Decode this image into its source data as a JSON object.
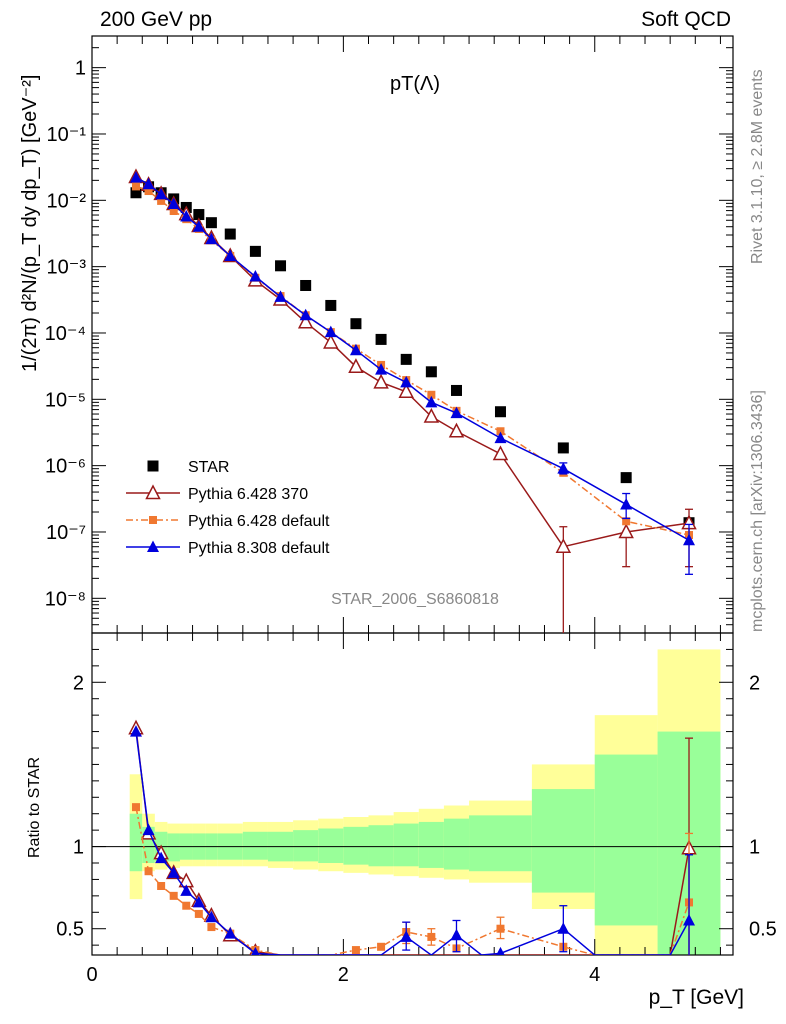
{
  "header": {
    "left": "200 GeV pp",
    "right": "Soft QCD"
  },
  "side_labels": {
    "rivet": "Rivet 3.1.10, ≥ 2.8M events",
    "mcplots": "mcplots.cern.ch [arXiv:1306.3436]"
  },
  "watermark": "STAR_2006_S6860818",
  "chart_data": [
    {
      "type": "scatter",
      "title": "pT(Λ)",
      "ylabel": "1/(2π) d²N/(p_T dy dp_T) [GeV⁻²]",
      "xlim": [
        0,
        5.1
      ],
      "ylim": [
        3e-09,
        3
      ],
      "yscale": "log",
      "x_ticklabels": [],
      "y_ticklabels": [
        "10⁻⁸",
        "10⁻⁷",
        "10⁻⁶",
        "10⁻⁵",
        "10⁻⁴",
        "10⁻³",
        "10⁻²",
        "10⁻¹",
        "1"
      ],
      "legend_position": "lower-left",
      "series": [
        {
          "name": "STAR",
          "color": "#000000",
          "marker": "square",
          "points": [
            [
              0.35,
              0.013
            ],
            [
              0.45,
              0.016
            ],
            [
              0.55,
              0.013
            ],
            [
              0.65,
              0.0105
            ],
            [
              0.75,
              0.0078
            ],
            [
              0.85,
              0.0061
            ],
            [
              0.95,
              0.0046
            ],
            [
              1.1,
              0.0031
            ],
            [
              1.3,
              0.0017
            ],
            [
              1.5,
              0.00103
            ],
            [
              1.7,
              0.00052
            ],
            [
              1.9,
              0.00026
            ],
            [
              2.1,
              0.000138
            ],
            [
              2.3,
              8e-05
            ],
            [
              2.5,
              4e-05
            ],
            [
              2.7,
              2.6e-05
            ],
            [
              2.9,
              1.36e-05
            ],
            [
              3.25,
              6.5e-06
            ],
            [
              3.75,
              1.85e-06
            ],
            [
              4.25,
              6.6e-07
            ],
            [
              4.75,
              1.38e-07
            ]
          ]
        },
        {
          "name": "Pythia 6.428 370",
          "color": "#9a1a1a",
          "marker": "triangle-open",
          "line": "solid",
          "points": [
            [
              0.35,
              0.0225
            ],
            [
              0.45,
              0.0172
            ],
            [
              0.55,
              0.0125
            ],
            [
              0.65,
              0.0088
            ],
            [
              0.75,
              0.0062
            ],
            [
              0.85,
              0.0041
            ],
            [
              0.95,
              0.0027
            ],
            [
              1.1,
              0.00145
            ],
            [
              1.3,
              0.00062
            ],
            [
              1.5,
              0.00032
            ],
            [
              1.7,
              0.000145
            ],
            [
              1.9,
              7.2e-05
            ],
            [
              2.1,
              3.1e-05
            ],
            [
              2.3,
              1.8e-05
            ],
            [
              2.5,
              1.3e-05
            ],
            [
              2.7,
              5.5e-06
            ],
            [
              2.9,
              3.3e-06
            ],
            [
              3.25,
              1.5e-06
            ],
            [
              3.75,
              6e-08
            ],
            [
              4.25,
              1e-07
            ],
            [
              4.75,
              1.36e-07
            ]
          ],
          "errors_low": [
            [
              3.75,
              3e-09
            ],
            [
              4.25,
              3e-08
            ],
            [
              4.75,
              3e-08
            ]
          ],
          "errors_high": [
            [
              3.75,
              1.2e-07
            ],
            [
              4.25,
              1.6e-07
            ],
            [
              4.75,
              2.2e-07
            ]
          ]
        },
        {
          "name": "Pythia 6.428 default",
          "color": "#f07830",
          "marker": "square-small",
          "line": "dashdot",
          "points": [
            [
              0.35,
              0.0162
            ],
            [
              0.45,
              0.0138
            ],
            [
              0.55,
              0.0098
            ],
            [
              0.65,
              0.0069
            ],
            [
              0.75,
              0.0052
            ],
            [
              0.85,
              0.0037
            ],
            [
              0.95,
              0.0025
            ],
            [
              1.1,
              0.00145
            ],
            [
              1.3,
              0.00068
            ],
            [
              1.5,
              0.00036
            ],
            [
              1.7,
              0.000185
            ],
            [
              1.9,
              0.000103
            ],
            [
              2.1,
              5.8e-05
            ],
            [
              2.3,
              3.3e-05
            ],
            [
              2.5,
              1.95e-05
            ],
            [
              2.7,
              1.17e-05
            ],
            [
              2.9,
              6.7e-06
            ],
            [
              3.25,
              3.3e-06
            ],
            [
              3.75,
              7.8e-07
            ],
            [
              4.25,
              1.45e-07
            ],
            [
              4.75,
              9e-08
            ]
          ]
        },
        {
          "name": "Pythia 8.308 default",
          "color": "#0000dd",
          "marker": "triangle-filled",
          "line": "solid",
          "points": [
            [
              0.35,
              0.022
            ],
            [
              0.45,
              0.0175
            ],
            [
              0.55,
              0.0123
            ],
            [
              0.65,
              0.0088
            ],
            [
              0.75,
              0.0057
            ],
            [
              0.85,
              0.004
            ],
            [
              0.95,
              0.0026
            ],
            [
              1.1,
              0.00145
            ],
            [
              1.3,
              0.00071
            ],
            [
              1.5,
              0.00035
            ],
            [
              1.7,
              0.000185
            ],
            [
              1.9,
              0.000103
            ],
            [
              2.1,
              5.5e-05
            ],
            [
              2.3,
              2.8e-05
            ],
            [
              2.5,
              1.8e-05
            ],
            [
              2.7,
              9e-06
            ],
            [
              2.9,
              6.2e-06
            ],
            [
              3.25,
              2.6e-06
            ],
            [
              3.75,
              9e-07
            ],
            [
              4.25,
              2.6e-07
            ],
            [
              4.75,
              7.5e-08
            ]
          ],
          "errors_low": [
            [
              3.75,
              7.5e-07
            ],
            [
              4.25,
              1.6e-07
            ],
            [
              4.75,
              2.3e-08
            ]
          ],
          "errors_high": [
            [
              3.75,
              1.1e-06
            ],
            [
              4.25,
              3.8e-07
            ],
            [
              4.75,
              1.3e-07
            ]
          ]
        }
      ]
    },
    {
      "type": "scatter",
      "ylabel": "Ratio to STAR",
      "xlabel": "p_T [GeV]",
      "xlim": [
        0,
        5.1
      ],
      "ylim": [
        0.34,
        2.3
      ],
      "x_ticklabels": [
        "0",
        "2",
        "4"
      ],
      "y_ticklabels": [
        "0.5",
        "1",
        "2"
      ],
      "reference_line": 1,
      "uncertainty_bands": {
        "x_edges": [
          0.3,
          0.4,
          0.5,
          0.6,
          0.7,
          0.8,
          0.9,
          1.0,
          1.2,
          1.4,
          1.6,
          1.8,
          2.0,
          2.2,
          2.4,
          2.6,
          2.8,
          3.0,
          3.5,
          4.0,
          4.5,
          5.0
        ],
        "yellow_low": [
          0.68,
          0.85,
          0.86,
          0.87,
          0.88,
          0.88,
          0.88,
          0.88,
          0.88,
          0.87,
          0.86,
          0.85,
          0.84,
          0.83,
          0.82,
          0.81,
          0.8,
          0.78,
          0.62,
          0.34,
          0.34
        ],
        "yellow_high": [
          1.44,
          1.2,
          1.15,
          1.14,
          1.14,
          1.14,
          1.14,
          1.14,
          1.15,
          1.15,
          1.16,
          1.17,
          1.18,
          1.19,
          1.21,
          1.23,
          1.25,
          1.28,
          1.5,
          1.8,
          2.2
        ],
        "green_low": [
          0.85,
          0.9,
          0.91,
          0.91,
          0.92,
          0.92,
          0.92,
          0.92,
          0.92,
          0.91,
          0.91,
          0.9,
          0.89,
          0.88,
          0.88,
          0.87,
          0.86,
          0.85,
          0.72,
          0.52,
          0.34
        ],
        "green_high": [
          1.2,
          1.12,
          1.09,
          1.08,
          1.08,
          1.08,
          1.08,
          1.08,
          1.09,
          1.09,
          1.1,
          1.11,
          1.12,
          1.13,
          1.14,
          1.15,
          1.17,
          1.19,
          1.35,
          1.56,
          1.7
        ]
      },
      "series": [
        {
          "name": "Pythia 6.428 370",
          "color": "#9a1a1a",
          "marker": "triangle-open",
          "line": "solid",
          "points": [
            [
              0.35,
              1.72
            ],
            [
              0.45,
              1.08
            ],
            [
              0.55,
              0.96
            ],
            [
              0.65,
              0.84
            ],
            [
              0.75,
              0.79
            ],
            [
              0.85,
              0.67
            ],
            [
              0.95,
              0.58
            ],
            [
              1.1,
              0.46
            ],
            [
              1.3,
              0.36
            ],
            [
              1.5,
              0.31
            ],
            [
              4.6,
              0.3
            ],
            [
              4.75,
              0.99
            ]
          ],
          "errors_low": [
            [
              4.75,
              0.3
            ]
          ],
          "errors_high": [
            [
              4.75,
              1.66
            ]
          ]
        },
        {
          "name": "Pythia 6.428 default",
          "color": "#f07830",
          "marker": "square-small",
          "line": "dashdot",
          "points": [
            [
              0.35,
              1.24
            ],
            [
              0.45,
              0.85
            ],
            [
              0.55,
              0.76
            ],
            [
              0.65,
              0.7
            ],
            [
              0.75,
              0.64
            ],
            [
              0.85,
              0.59
            ],
            [
              0.95,
              0.51
            ],
            [
              1.1,
              0.47
            ],
            [
              1.3,
              0.37
            ],
            [
              1.5,
              0.32
            ],
            [
              1.9,
              0.31
            ],
            [
              2.1,
              0.37
            ],
            [
              2.3,
              0.39
            ],
            [
              2.5,
              0.48
            ],
            [
              2.7,
              0.45
            ],
            [
              2.9,
              0.38
            ],
            [
              3.25,
              0.5
            ],
            [
              3.75,
              0.39
            ],
            [
              4.0,
              0.3
            ],
            [
              4.6,
              0.3
            ],
            [
              4.75,
              0.66
            ]
          ],
          "errors_low": [
            [
              2.5,
              0.41
            ],
            [
              2.7,
              0.4
            ],
            [
              3.25,
              0.44
            ],
            [
              4.75,
              0.3
            ]
          ],
          "errors_high": [
            [
              2.5,
              0.54
            ],
            [
              2.7,
              0.5
            ],
            [
              3.25,
              0.57
            ],
            [
              4.75,
              1.08
            ]
          ]
        },
        {
          "name": "Pythia 8.308 default",
          "color": "#0000dd",
          "marker": "triangle-filled",
          "line": "solid",
          "points": [
            [
              0.35,
              1.7
            ],
            [
              0.45,
              1.1
            ],
            [
              0.55,
              0.93
            ],
            [
              0.65,
              0.84
            ],
            [
              0.75,
              0.73
            ],
            [
              0.85,
              0.66
            ],
            [
              0.95,
              0.57
            ],
            [
              1.1,
              0.47
            ],
            [
              1.3,
              0.35
            ],
            [
              1.5,
              0.31
            ],
            [
              2.3,
              0.31
            ],
            [
              2.5,
              0.45
            ],
            [
              2.7,
              0.31
            ],
            [
              2.9,
              0.46
            ],
            [
              3.1,
              0.31
            ],
            [
              3.25,
              0.35
            ],
            [
              3.75,
              0.5
            ],
            [
              4.0,
              0.31
            ],
            [
              4.6,
              0.31
            ],
            [
              4.75,
              0.55
            ]
          ],
          "errors_low": [
            [
              2.5,
              0.37
            ],
            [
              2.9,
              0.36
            ],
            [
              3.75,
              0.36
            ],
            [
              4.75,
              0.3
            ]
          ],
          "errors_high": [
            [
              2.5,
              0.54
            ],
            [
              2.9,
              0.55
            ],
            [
              3.75,
              0.64
            ],
            [
              4.75,
              0.95
            ]
          ]
        }
      ]
    }
  ]
}
